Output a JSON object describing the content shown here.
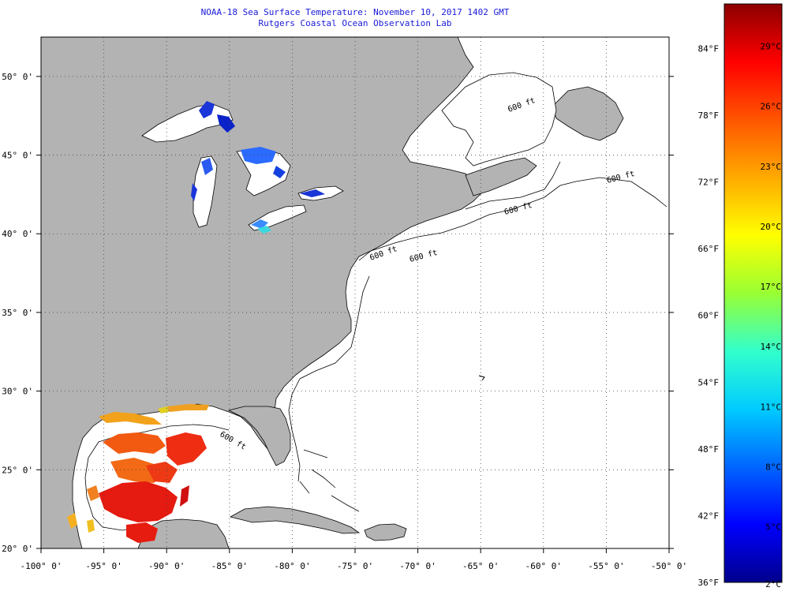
{
  "title": {
    "line1": "NOAA-18 Sea Surface Temperature:  November 10, 2017 1402 GMT",
    "line2": "Rutgers Coastal Ocean Observation Lab"
  },
  "map": {
    "lon_range": [
      -100,
      -50
    ],
    "lat_range": [
      20,
      52.5
    ],
    "lon_ticks": [
      -100,
      -95,
      -90,
      -85,
      -80,
      -75,
      -70,
      -65,
      -60,
      -55,
      -50
    ],
    "lat_ticks": [
      20,
      25,
      30,
      35,
      40,
      45,
      50
    ],
    "lon_labels": [
      "-100° 0'",
      "-95° 0'",
      "-90° 0'",
      "-85° 0'",
      "-80° 0'",
      "-75° 0'",
      "-70° 0'",
      "-65° 0'",
      "-60° 0'",
      "-55° 0'",
      "-50° 0'"
    ],
    "lat_labels": [
      "20° 0'",
      "25° 0'",
      "30° 0'",
      "35° 0'",
      "40° 0'",
      "45° 0'",
      "50° 0'"
    ],
    "grid": "dotted",
    "contour_labels": [
      "600 ft",
      "600 ft",
      "600 ft",
      "600 ft",
      "600 ft",
      "600 ft"
    ],
    "colors": {
      "land": "#b3b3b3",
      "ocean_nodata": "#ffffff",
      "coast": "#000000"
    }
  },
  "colorbar": {
    "fahrenheit_labels": [
      "84°F",
      "78°F",
      "72°F",
      "66°F",
      "60°F",
      "54°F",
      "48°F",
      "42°F",
      "36°F"
    ],
    "celsius_labels": [
      "29°C",
      "26°C",
      "23°C",
      "20°C",
      "17°C",
      "14°C",
      "11°C",
      "8°C",
      "5°C",
      "2°C"
    ],
    "range_f": [
      36,
      88
    ],
    "gradient": [
      "#00008b",
      "#0000ff",
      "#0066ff",
      "#00ccff",
      "#33ffcc",
      "#99ff33",
      "#ffff00",
      "#ffaa00",
      "#ff5500",
      "#ff0000",
      "#8b0000"
    ]
  }
}
